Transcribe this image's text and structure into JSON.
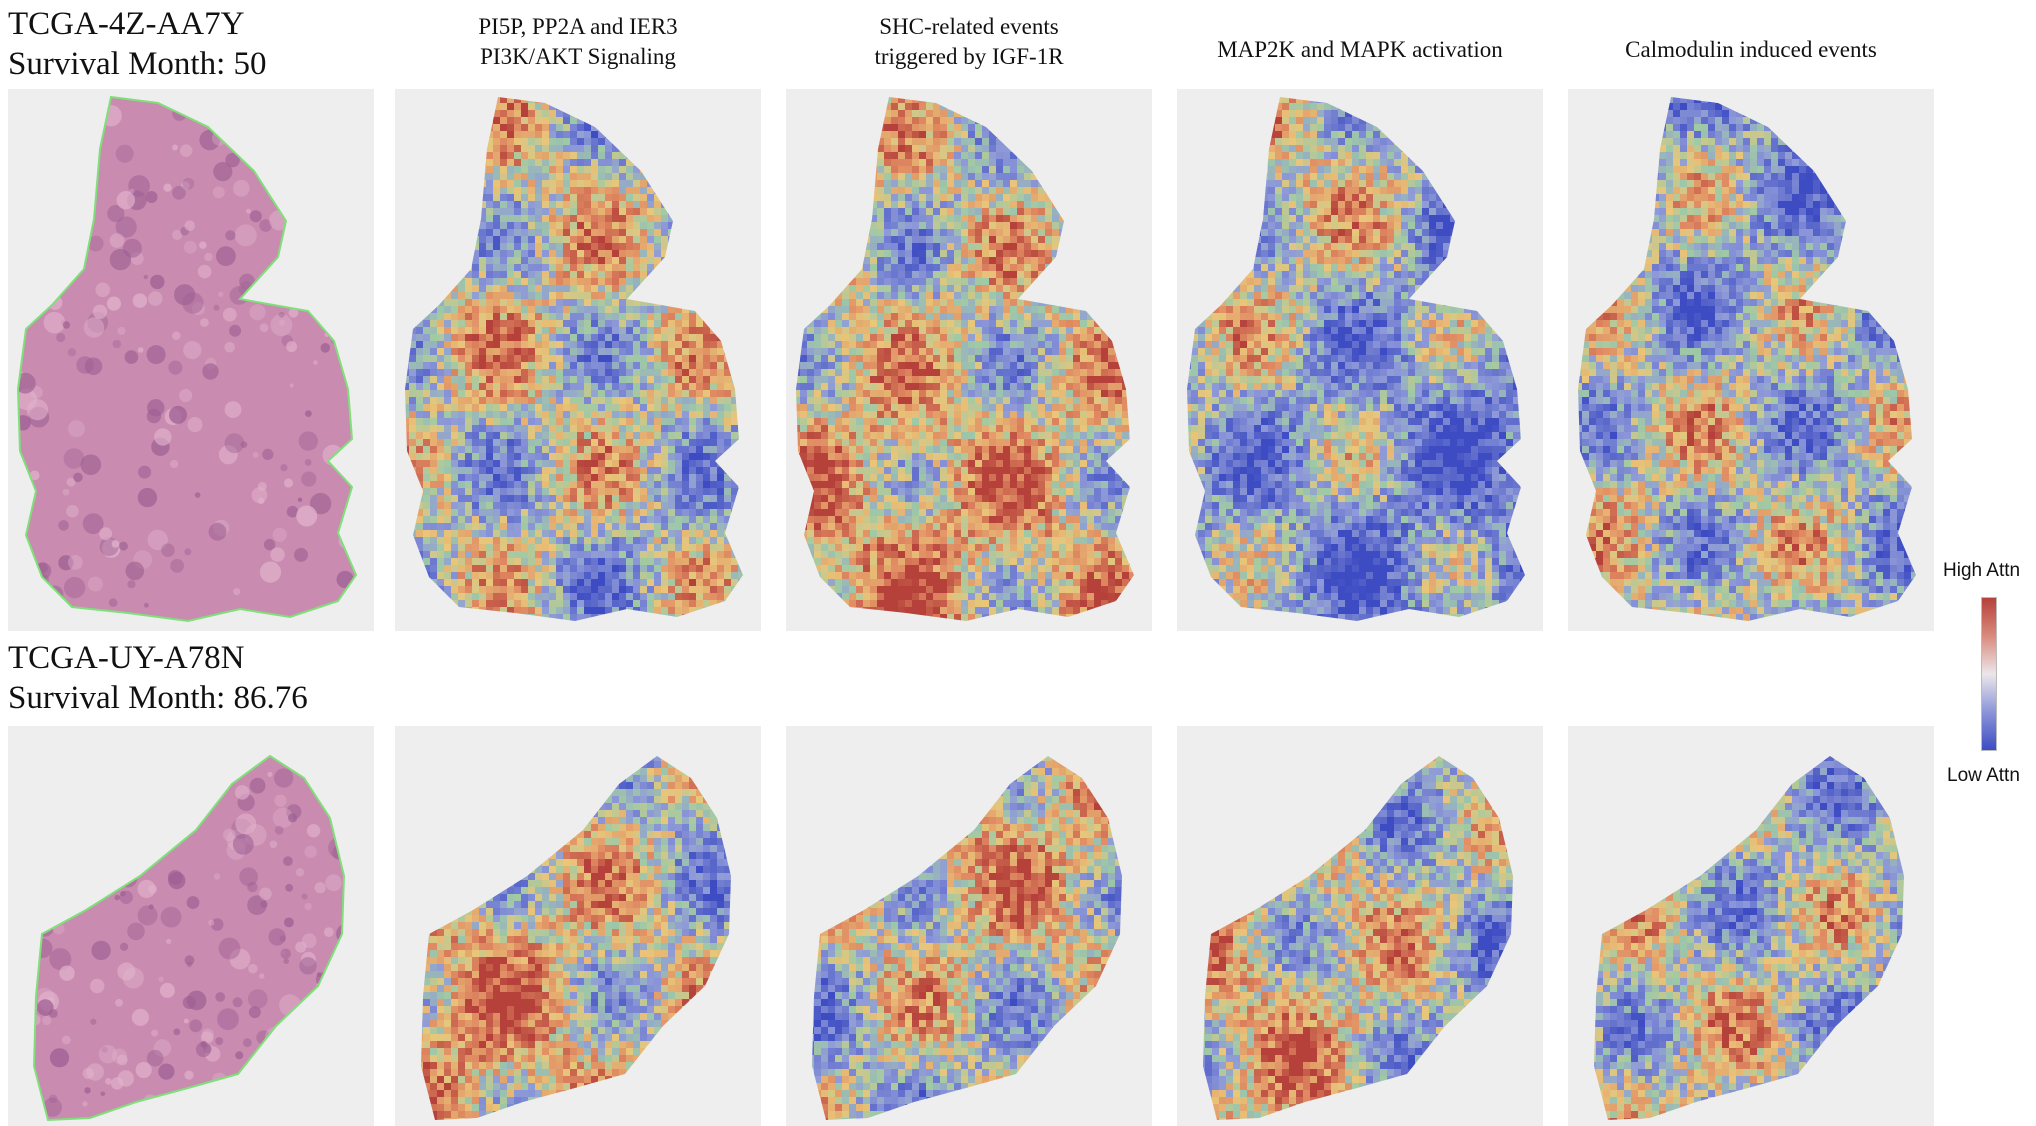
{
  "figure": {
    "columns": [
      {
        "title": "PI5P, PP2A and IER3\nPI3K/AKT Signaling"
      },
      {
        "title": "SHC-related events\ntriggered by IGF-1R"
      },
      {
        "title": "MAP2K and MAPK activation"
      },
      {
        "title": "Calmodulin induced events"
      }
    ],
    "cases": [
      {
        "id": "TCGA-4Z-AA7Y",
        "survival": "Survival Month: 50"
      },
      {
        "id": "TCGA-UY-A78N",
        "survival": "Survival Month: 86.76"
      }
    ],
    "legend": {
      "high": "High Attn",
      "low": "Low Attn"
    },
    "colors": {
      "high_attention": "#b5413a",
      "low_attention": "#3d4cc3",
      "neutral": "#ece6ea",
      "he_stain": "#c98bb0",
      "annotation_outline": "#7fe07a"
    }
  }
}
